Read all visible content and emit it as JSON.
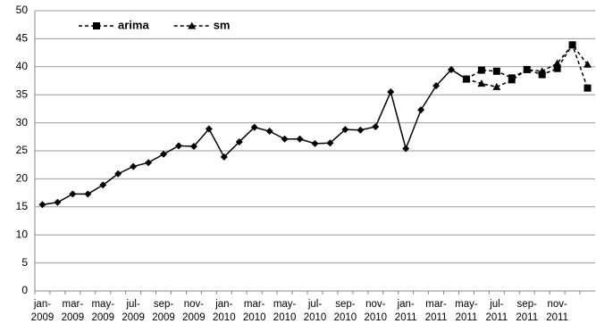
{
  "chart_data": {
    "type": "line",
    "categories": [
      "jan-2009",
      null,
      "mar-2009",
      null,
      "may-2009",
      null,
      "jul-2009",
      null,
      "sep-2009",
      null,
      "nov-2009",
      null,
      "jan-2010",
      null,
      "mar-2010",
      null,
      "may-2010",
      null,
      "jul-2010",
      null,
      "sep-2010",
      null,
      "nov-2010",
      null,
      "jan-2011",
      null,
      "mar-2011",
      null,
      "may-2011",
      null,
      "jul-2011",
      null,
      "sep-2011",
      null,
      "nov-2011",
      null,
      null
    ],
    "series": [
      {
        "color": "#000000",
        "marker": "diamond",
        "dashed": false,
        "values": [
          15.4,
          15.8,
          17.3,
          17.3,
          18.9,
          20.9,
          22.2,
          22.9,
          24.4,
          25.9,
          25.8,
          28.9,
          23.9,
          26.6,
          29.2,
          28.5,
          27.1,
          27.1,
          26.3,
          26.4,
          28.8,
          28.7,
          29.3,
          35.5,
          25.4,
          32.3,
          36.6,
          39.5,
          37.8,
          null,
          null,
          null,
          null,
          null,
          null,
          null,
          null
        ]
      },
      {
        "name": "arima",
        "color": "#000000",
        "marker": "square",
        "dashed": true,
        "values": [
          null,
          null,
          null,
          null,
          null,
          null,
          null,
          null,
          null,
          null,
          null,
          null,
          null,
          null,
          null,
          null,
          null,
          null,
          null,
          null,
          null,
          null,
          null,
          null,
          null,
          null,
          null,
          null,
          37.8,
          39.4,
          39.2,
          38.0,
          39.5,
          38.6,
          39.7,
          43.9,
          36.2
        ]
      },
      {
        "name": "sm",
        "color": "#000000",
        "marker": "triangle",
        "dashed": true,
        "values": [
          null,
          null,
          null,
          null,
          null,
          null,
          null,
          null,
          null,
          null,
          null,
          null,
          null,
          null,
          null,
          null,
          null,
          null,
          null,
          null,
          null,
          null,
          null,
          null,
          null,
          null,
          null,
          null,
          37.8,
          37.0,
          36.4,
          37.6,
          39.5,
          39.2,
          40.6,
          43.9,
          40.4
        ]
      }
    ],
    "ylim": [
      0,
      50
    ],
    "yticks": [
      0,
      5,
      10,
      15,
      20,
      25,
      30,
      35,
      40,
      45,
      50
    ],
    "grid": true,
    "legend": "top-left"
  }
}
